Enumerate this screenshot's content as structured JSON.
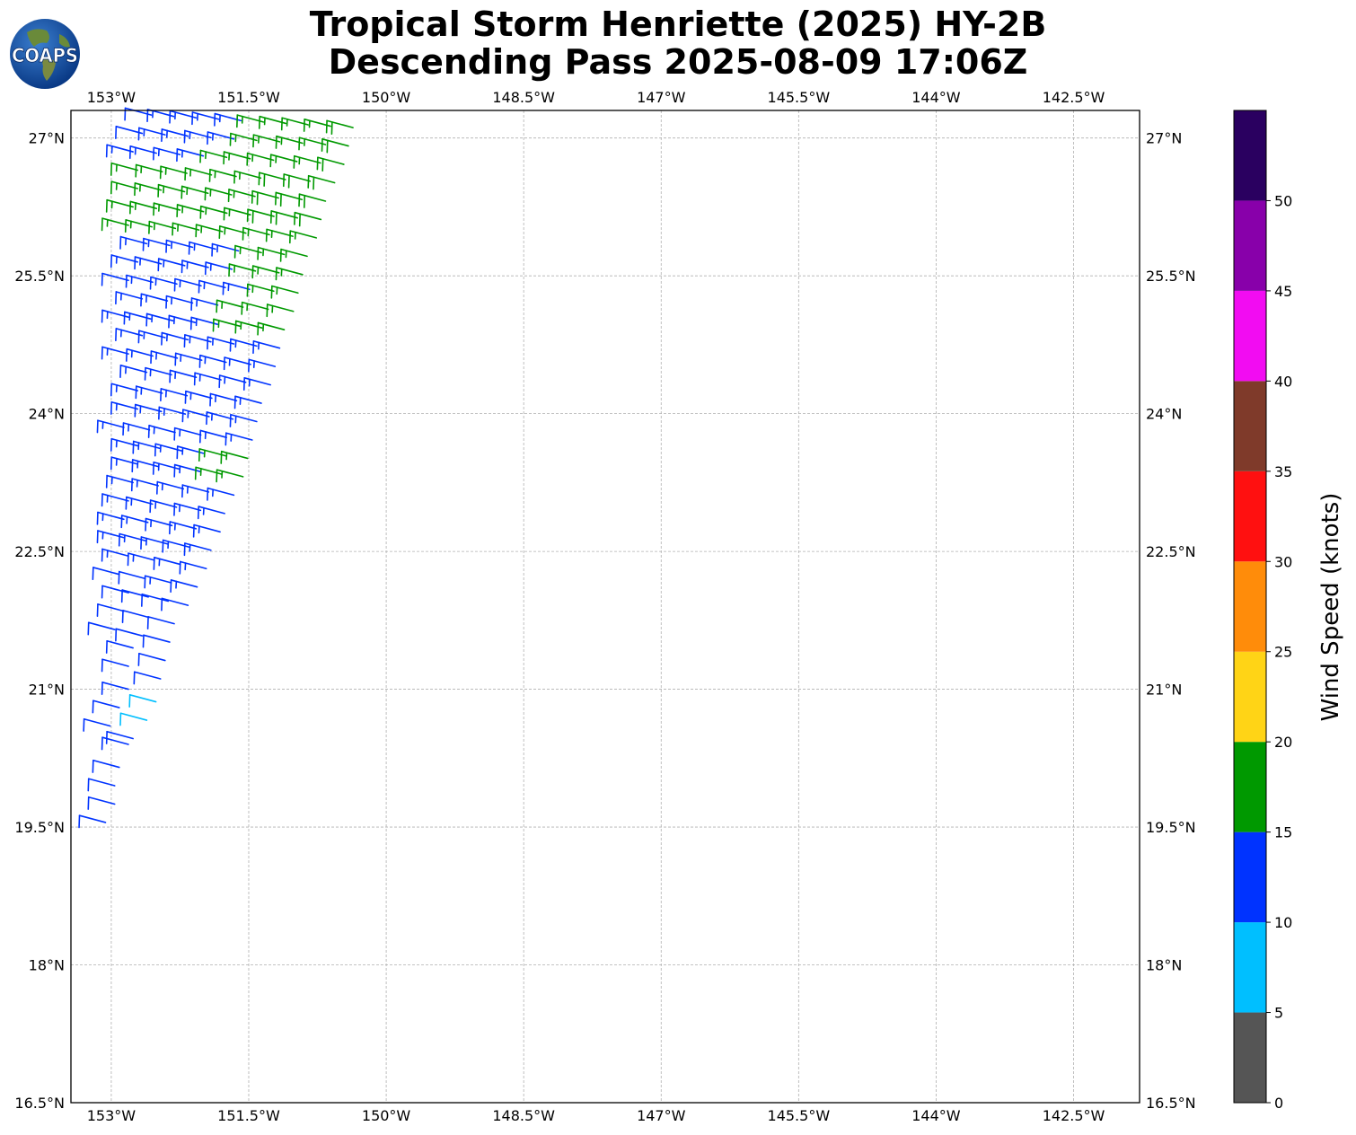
{
  "title": {
    "line1": "Tropical Storm Henriette (2025) HY-2B",
    "line2": "Descending Pass 2025-08-09 17:06Z"
  },
  "logo": {
    "text": "COAPS",
    "icon": "globe-icon"
  },
  "map": {
    "lon_range": [
      -153.44,
      -141.78
    ],
    "lat_range": [
      16.5,
      27.3
    ],
    "lon_ticks": [
      -153,
      -151.5,
      -150,
      -148.5,
      -147,
      -145.5,
      -144,
      -142.5
    ],
    "lon_tick_labels": [
      "153°W",
      "151.5°W",
      "150°W",
      "148.5°W",
      "147°W",
      "145.5°W",
      "144°W",
      "142.5°W"
    ],
    "lat_ticks": [
      27,
      25.5,
      24,
      22.5,
      21,
      19.5,
      18,
      16.5
    ],
    "lat_tick_labels": [
      "27°N",
      "25.5°N",
      "24°N",
      "22.5°N",
      "21°N",
      "19.5°N",
      "18°N",
      "16.5°N"
    ],
    "grid": true,
    "grid_color": "#b0b0b0"
  },
  "colorbar": {
    "label": "Wind Speed (knots)",
    "ticks": [
      0,
      5,
      10,
      15,
      20,
      25,
      30,
      35,
      40,
      45,
      50
    ],
    "tick_labels": [
      "0",
      "5",
      "10",
      "15",
      "20",
      "25",
      "30",
      "35",
      "40",
      "45",
      "50"
    ],
    "bins": [
      {
        "from": 0,
        "to": 5,
        "color": "#555555"
      },
      {
        "from": 5,
        "to": 10,
        "color": "#00bfff"
      },
      {
        "from": 10,
        "to": 15,
        "color": "#0033ff"
      },
      {
        "from": 15,
        "to": 20,
        "color": "#009900"
      },
      {
        "from": 20,
        "to": 25,
        "color": "#ffd416"
      },
      {
        "from": 25,
        "to": 30,
        "color": "#ff8c0a"
      },
      {
        "from": 30,
        "to": 35,
        "color": "#ff1010"
      },
      {
        "from": 35,
        "to": 40,
        "color": "#7f3a2a"
      },
      {
        "from": 40,
        "to": 45,
        "color": "#f20cf2"
      },
      {
        "from": 45,
        "to": 50,
        "color": "#8800aa"
      },
      {
        "from": 50,
        "to": 55,
        "color": "#2a0060"
      }
    ]
  },
  "wind_barbs": {
    "units": "knots",
    "direction_from_deg": 75,
    "rows": [
      {
        "lat": 27.25,
        "lon_start": -152.7,
        "lon_end": -150.5,
        "speed_west": 12,
        "speed_east": 18
      },
      {
        "lat": 27.05,
        "lon_start": -152.8,
        "lon_end": -150.55,
        "speed_west": 12,
        "speed_east": 18
      },
      {
        "lat": 26.85,
        "lon_start": -152.9,
        "lon_end": -150.6,
        "speed_west": 13,
        "speed_east": 18
      },
      {
        "lat": 26.65,
        "lon_start": -152.85,
        "lon_end": -150.7,
        "speed_west": 16,
        "speed_east": 18
      },
      {
        "lat": 26.45,
        "lon_start": -152.85,
        "lon_end": -150.8,
        "speed_west": 16,
        "speed_east": 18
      },
      {
        "lat": 26.25,
        "lon_start": -152.9,
        "lon_end": -150.85,
        "speed_west": 16,
        "speed_east": 18
      },
      {
        "lat": 26.05,
        "lon_start": -152.95,
        "lon_end": -150.9,
        "speed_west": 16,
        "speed_east": 17
      },
      {
        "lat": 25.85,
        "lon_start": -152.75,
        "lon_end": -151.0,
        "speed_west": 13,
        "speed_east": 16
      },
      {
        "lat": 25.65,
        "lon_start": -152.85,
        "lon_end": -151.05,
        "speed_west": 13,
        "speed_east": 16
      },
      {
        "lat": 25.45,
        "lon_start": -152.95,
        "lon_end": -151.1,
        "speed_west": 12,
        "speed_east": 16
      },
      {
        "lat": 25.25,
        "lon_start": -152.8,
        "lon_end": -151.15,
        "speed_west": 13,
        "speed_east": 16
      },
      {
        "lat": 25.05,
        "lon_start": -152.95,
        "lon_end": -151.25,
        "speed_west": 13,
        "speed_east": 16
      },
      {
        "lat": 24.85,
        "lon_start": -152.8,
        "lon_end": -151.3,
        "speed_west": 13,
        "speed_east": 14
      },
      {
        "lat": 24.65,
        "lon_start": -152.95,
        "lon_end": -151.35,
        "speed_west": 13,
        "speed_east": 14
      },
      {
        "lat": 24.45,
        "lon_start": -152.75,
        "lon_end": -151.4,
        "speed_west": 13,
        "speed_east": 14
      },
      {
        "lat": 24.25,
        "lon_start": -152.85,
        "lon_end": -151.5,
        "speed_west": 13,
        "speed_east": 13
      },
      {
        "lat": 24.05,
        "lon_start": -152.85,
        "lon_end": -151.55,
        "speed_west": 13,
        "speed_east": 13
      },
      {
        "lat": 23.85,
        "lon_start": -153.0,
        "lon_end": -151.6,
        "speed_west": 13,
        "speed_east": 13
      },
      {
        "lat": 23.65,
        "lon_start": -152.85,
        "lon_end": -151.65,
        "speed_west": 13,
        "speed_east": 16
      },
      {
        "lat": 23.45,
        "lon_start": -152.85,
        "lon_end": -151.7,
        "speed_west": 13,
        "speed_east": 16
      },
      {
        "lat": 23.25,
        "lon_start": -152.9,
        "lon_end": -151.8,
        "speed_west": 13,
        "speed_east": 13
      },
      {
        "lat": 23.05,
        "lon_start": -152.95,
        "lon_end": -151.9,
        "speed_west": 13,
        "speed_east": 13
      },
      {
        "lat": 22.85,
        "lon_start": -153.0,
        "lon_end": -151.95,
        "speed_west": 13,
        "speed_east": 13
      },
      {
        "lat": 22.65,
        "lon_start": -153.0,
        "lon_end": -152.05,
        "speed_west": 13,
        "speed_east": 13
      },
      {
        "lat": 22.45,
        "lon_start": -152.95,
        "lon_end": -152.1,
        "speed_west": 13,
        "speed_east": 13
      },
      {
        "lat": 22.25,
        "lon_start": -153.05,
        "lon_end": -152.2,
        "speed_west": 12,
        "speed_east": 13
      },
      {
        "lat": 22.05,
        "lon_start": -152.95,
        "lon_end": -152.3,
        "speed_west": 12,
        "speed_east": 12
      },
      {
        "lat": 21.85,
        "lon_start": -153.0,
        "lon_end": -152.45,
        "speed_west": 12,
        "speed_east": 12
      },
      {
        "lat": 21.65,
        "lon_start": -153.1,
        "lon_end": -152.5,
        "speed_west": 12,
        "speed_east": 12
      },
      {
        "lat": 21.45,
        "lon_start": -152.9,
        "lon_end": -152.55,
        "speed_west": 12,
        "speed_east": 12
      },
      {
        "lat": 21.25,
        "lon_start": -152.95,
        "lon_end": -152.6,
        "speed_west": 12,
        "speed_east": 12
      },
      {
        "lat": 21.0,
        "lon_start": -152.95,
        "lon_end": -152.65,
        "speed_west": 12,
        "speed_east": 8
      },
      {
        "lat": 20.8,
        "lon_start": -153.05,
        "lon_end": -152.75,
        "speed_west": 12,
        "speed_east": 8
      },
      {
        "lat": 20.6,
        "lon_start": -153.15,
        "lon_end": -152.9,
        "speed_west": 12,
        "speed_east": 12
      },
      {
        "lat": 20.4,
        "lon_start": -152.95,
        "lon_end": -152.9,
        "speed_west": 12,
        "speed_east": 12
      },
      {
        "lat": 20.15,
        "lon_start": -153.05,
        "lon_end": -152.95,
        "speed_west": 12,
        "speed_east": 12
      },
      {
        "lat": 19.95,
        "lon_start": -153.1,
        "lon_end": -153.05,
        "speed_west": 12,
        "speed_east": 12
      },
      {
        "lat": 19.75,
        "lon_start": -153.1,
        "lon_end": -153.1,
        "speed_west": 12,
        "speed_east": 12
      },
      {
        "lat": 19.55,
        "lon_start": -153.2,
        "lon_end": -153.2,
        "speed_west": 12,
        "speed_east": 12
      }
    ]
  }
}
